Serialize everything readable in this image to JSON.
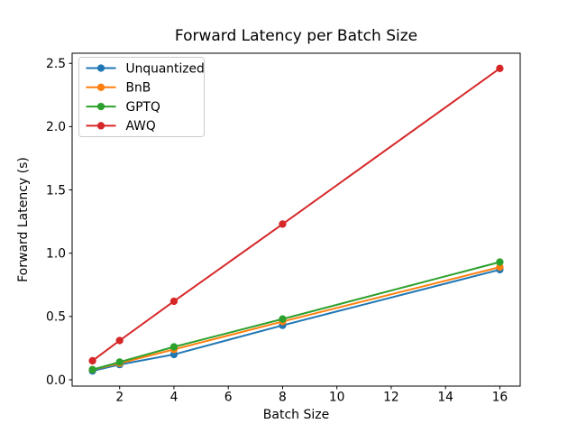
{
  "chart_data": {
    "type": "line",
    "title": "Forward Latency per Batch Size",
    "xlabel": "Batch Size",
    "ylabel": "Forward Latency (s)",
    "x": [
      1,
      2,
      4,
      8,
      16
    ],
    "series": [
      {
        "name": "Unquantized",
        "color": "#1f77b4",
        "values": [
          0.07,
          0.12,
          0.2,
          0.43,
          0.87
        ]
      },
      {
        "name": "BnB",
        "color": "#ff7f0e",
        "values": [
          0.08,
          0.13,
          0.24,
          0.46,
          0.89
        ]
      },
      {
        "name": "GPTQ",
        "color": "#2ca02c",
        "values": [
          0.08,
          0.14,
          0.26,
          0.48,
          0.93
        ]
      },
      {
        "name": "AWQ",
        "color": "#d62728",
        "values": [
          0.15,
          0.31,
          0.62,
          1.23,
          2.46
        ]
      }
    ],
    "xticks": [
      2,
      4,
      6,
      8,
      10,
      12,
      14,
      16
    ],
    "yticks": [
      0.0,
      0.5,
      1.0,
      1.5,
      2.0,
      2.5
    ],
    "xlim": [
      0.25,
      16.75
    ],
    "ylim": [
      -0.05,
      2.58
    ],
    "grid": false,
    "marker": "o",
    "legend_position": "upper left",
    "frame_color": "#000000",
    "legend_border_color": "#cccccc",
    "background_color": "#ffffff"
  }
}
